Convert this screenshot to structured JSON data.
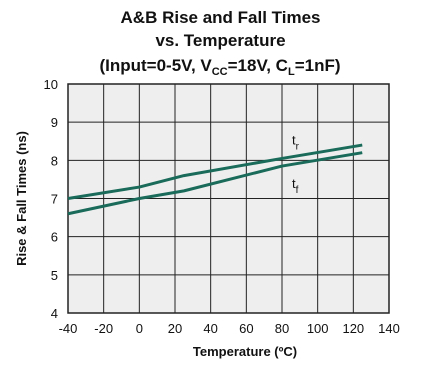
{
  "chart_data": {
    "type": "line",
    "title": "A&B Rise and Fall Times",
    "subtitle_line1": "vs. Temperature",
    "subtitle_line2": {
      "parts": [
        {
          "text": "(Input=0-5V, V",
          "sub": false
        },
        {
          "text": "CC",
          "sub": true
        },
        {
          "text": "=18V, C",
          "sub": false
        },
        {
          "text": "L",
          "sub": true
        },
        {
          "text": "=1nF)",
          "sub": false
        }
      ]
    },
    "xlabel": "Temperature (ºC)",
    "ylabel": "Rise & Fall Times (ns)",
    "xlim": [
      -40,
      140
    ],
    "ylim": [
      4,
      10
    ],
    "x_ticks": [
      -40,
      -20,
      0,
      20,
      40,
      60,
      80,
      100,
      120,
      140
    ],
    "y_ticks": [
      4,
      5,
      6,
      7,
      8,
      9,
      10
    ],
    "grid": true,
    "series": [
      {
        "name": "t",
        "sub": "r",
        "x": [
          -40,
          0,
          25,
          80,
          125
        ],
        "y": [
          7.0,
          7.3,
          7.6,
          8.05,
          8.4
        ]
      },
      {
        "name": "t",
        "sub": "f",
        "x": [
          -40,
          0,
          25,
          80,
          125
        ],
        "y": [
          6.6,
          7.0,
          7.2,
          7.85,
          8.2
        ]
      }
    ],
    "colors": {
      "series": "#1a6b5a",
      "grid": "#222222",
      "plot_bg": "#eeeeee"
    }
  }
}
